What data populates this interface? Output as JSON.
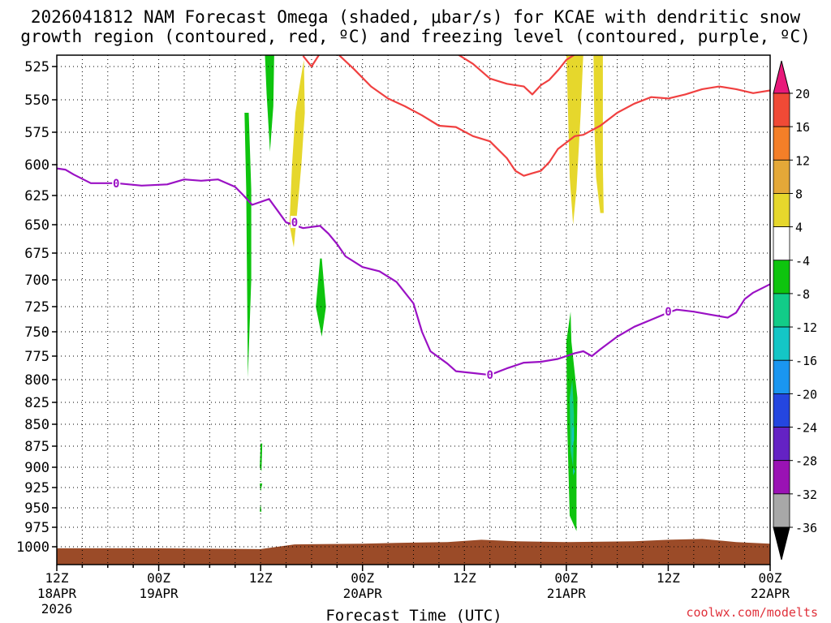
{
  "title_line1": "2026041812 NAM Forecast Omega (shaded, μbar/s) for KCAE with dendritic snow",
  "title_line2": "growth region (contoured, red, ºC) and freezing level (contoured, purple, ºC)",
  "credit": "coolwx.com/modelts",
  "chart_data": {
    "type": "time-height",
    "title": "2026041812 NAM Forecast Omega (shaded, μbar/s) for KCAE with dendritic snow growth region (contoured, red, ºC) and freezing level (contoured, purple, ºC)",
    "xlabel": "Forecast Time (UTC)",
    "ylabel": "",
    "x_range_hours": [
      0,
      84
    ],
    "x_ticks": [
      {
        "hour": 0,
        "line1": "12Z",
        "line2": "18APR",
        "line3": "2026"
      },
      {
        "hour": 12,
        "line1": "00Z",
        "line2": "19APR",
        "line3": ""
      },
      {
        "hour": 24,
        "line1": "12Z",
        "line2": "",
        "line3": ""
      },
      {
        "hour": 36,
        "line1": "00Z",
        "line2": "20APR",
        "line3": ""
      },
      {
        "hour": 48,
        "line1": "12Z",
        "line2": "",
        "line3": ""
      },
      {
        "hour": 60,
        "line1": "00Z",
        "line2": "21APR",
        "line3": ""
      },
      {
        "hour": 72,
        "line1": "12Z",
        "line2": "",
        "line3": ""
      },
      {
        "hour": 84,
        "line1": "00Z",
        "line2": "22APR",
        "line3": ""
      }
    ],
    "y_ticks": [
      "525",
      "550",
      "575",
      "600",
      "625",
      "650",
      "675",
      "700",
      "725",
      "750",
      "775",
      "800",
      "825",
      "850",
      "875",
      "900",
      "925",
      "950",
      "975",
      "1000"
    ],
    "grid": true,
    "colorbar": {
      "ticks": [
        "20",
        "16",
        "12",
        "8",
        "4",
        "-4",
        "-8",
        "-12",
        "-16",
        "-20",
        "-24",
        "-28",
        "-32",
        "-36"
      ],
      "colors": [
        "#e8197a",
        "#f04a36",
        "#f47f28",
        "#e4a838",
        "#e6d72c",
        "#ffffff",
        "#0ec40e",
        "#12cc88",
        "#14c6c6",
        "#1a96f0",
        "#2446e0",
        "#6422c4",
        "#9a12b4",
        "#a8a8a8",
        "#000000"
      ]
    },
    "freezing_level": {
      "color": "#9a11c4",
      "label": "0",
      "points": [
        [
          0,
          603
        ],
        [
          1,
          604
        ],
        [
          2,
          608
        ],
        [
          4,
          615
        ],
        [
          7,
          615
        ],
        [
          10,
          617
        ],
        [
          13,
          616
        ],
        [
          15,
          612
        ],
        [
          17,
          613
        ],
        [
          19,
          612
        ],
        [
          21,
          618
        ],
        [
          22,
          625
        ],
        [
          23,
          633
        ],
        [
          25,
          628
        ],
        [
          26,
          638
        ],
        [
          27,
          648
        ],
        [
          29,
          653
        ],
        [
          31,
          651
        ],
        [
          32,
          658
        ],
        [
          33,
          667
        ],
        [
          34,
          678
        ],
        [
          36,
          688
        ],
        [
          38,
          692
        ],
        [
          40,
          702
        ],
        [
          42,
          722
        ],
        [
          43,
          750
        ],
        [
          44,
          770
        ],
        [
          46,
          783
        ],
        [
          47,
          791
        ],
        [
          49,
          793
        ],
        [
          51,
          795
        ],
        [
          53,
          788
        ],
        [
          55,
          782
        ],
        [
          57,
          781
        ],
        [
          59,
          778
        ],
        [
          61,
          772
        ],
        [
          62,
          770
        ],
        [
          63,
          775
        ],
        [
          64,
          768
        ],
        [
          66,
          755
        ],
        [
          68,
          745
        ],
        [
          70,
          738
        ],
        [
          72,
          731
        ],
        [
          73,
          728
        ],
        [
          75,
          730
        ],
        [
          77,
          733
        ],
        [
          79,
          736
        ],
        [
          80,
          731
        ],
        [
          81,
          718
        ],
        [
          82,
          712
        ],
        [
          84,
          704
        ]
      ]
    },
    "dgz_contour": {
      "color": "#f04040",
      "segments": [
        [
          [
            29,
            517
          ],
          [
            30,
            525
          ],
          [
            31,
            515
          ]
        ],
        [
          [
            33,
            515
          ],
          [
            35,
            527
          ],
          [
            37,
            540
          ],
          [
            39,
            549
          ],
          [
            41,
            555
          ],
          [
            43,
            562
          ],
          [
            45,
            570
          ],
          [
            47,
            571
          ],
          [
            49,
            578
          ],
          [
            51,
            582
          ],
          [
            53,
            595
          ],
          [
            54,
            605
          ],
          [
            55,
            609
          ],
          [
            56,
            607
          ],
          [
            57,
            605
          ],
          [
            58,
            598
          ],
          [
            59,
            588
          ],
          [
            60,
            583
          ],
          [
            61,
            578
          ],
          [
            62,
            577
          ],
          [
            64,
            570
          ],
          [
            66,
            560
          ],
          [
            68,
            553
          ],
          [
            70,
            548
          ],
          [
            72,
            549
          ],
          [
            74,
            546
          ],
          [
            76,
            542
          ],
          [
            78,
            540
          ],
          [
            80,
            542
          ],
          [
            82,
            545
          ],
          [
            84,
            543
          ]
        ],
        [
          [
            47,
            515
          ],
          [
            49,
            523
          ],
          [
            51,
            534
          ],
          [
            53,
            538
          ],
          [
            55,
            540
          ],
          [
            56,
            546
          ],
          [
            57,
            539
          ],
          [
            58,
            535
          ],
          [
            59,
            528
          ],
          [
            60,
            520
          ],
          [
            61,
            516
          ]
        ]
      ]
    },
    "omega_regions": [
      {
        "value_range": "4 to 8",
        "color": "#e6d72c",
        "points": [
          [
            27.4,
            650
          ],
          [
            27.7,
            600
          ],
          [
            28.1,
            560
          ],
          [
            28.7,
            535
          ],
          [
            29.1,
            520
          ],
          [
            29.2,
            560
          ],
          [
            28.8,
            600
          ],
          [
            28.3,
            640
          ],
          [
            27.9,
            670
          ]
        ]
      },
      {
        "value_range": "4 to 8",
        "color": "#e6d72c",
        "points": [
          [
            60.0,
            515
          ],
          [
            60.2,
            560
          ],
          [
            60.4,
            610
          ],
          [
            60.8,
            650
          ],
          [
            61.2,
            620
          ],
          [
            61.7,
            560
          ],
          [
            62.0,
            515
          ]
        ]
      },
      {
        "value_range": "4 to 8",
        "color": "#e6d72c",
        "points": [
          [
            63.2,
            515
          ],
          [
            63.3,
            570
          ],
          [
            63.5,
            610
          ],
          [
            64.0,
            640
          ],
          [
            64.4,
            640
          ],
          [
            64.3,
            600
          ],
          [
            64.3,
            560
          ],
          [
            64.3,
            515
          ]
        ]
      },
      {
        "value_range": "-4 to -8",
        "color": "#0ec40e",
        "points": [
          [
            24.5,
            515
          ],
          [
            24.7,
            545
          ],
          [
            25.1,
            590
          ],
          [
            25.5,
            555
          ],
          [
            25.6,
            515
          ]
        ]
      },
      {
        "value_range": "-4 to -8",
        "color": "#0ec40e",
        "points": [
          [
            22.1,
            560
          ],
          [
            22.3,
            620
          ],
          [
            22.4,
            700
          ],
          [
            22.5,
            798
          ],
          [
            22.9,
            700
          ],
          [
            22.9,
            620
          ],
          [
            22.6,
            560
          ]
        ]
      },
      {
        "value_range": "-4 to -8",
        "color": "#0ec40e",
        "points": [
          [
            31.0,
            680
          ],
          [
            30.5,
            725
          ],
          [
            31.2,
            755
          ],
          [
            31.7,
            725
          ],
          [
            31.2,
            680
          ]
        ]
      },
      {
        "value_range": "-4 to -8",
        "color": "#0ec40e",
        "points": [
          [
            24.0,
            872
          ],
          [
            23.9,
            900
          ],
          [
            24.1,
            905
          ],
          [
            24.2,
            872
          ]
        ]
      },
      {
        "value_range": "-4 to -8",
        "color": "#0ec40e",
        "points": [
          [
            23.9,
            920
          ],
          [
            24.0,
            930
          ],
          [
            24.2,
            920
          ]
        ]
      },
      {
        "value_range": "-4 to -8",
        "color": "#0ec40e",
        "points": [
          [
            24.0,
            945
          ],
          [
            23.9,
            955
          ],
          [
            24.1,
            955
          ]
        ]
      },
      {
        "value_range": "-4 to -8",
        "color": "#0ec40e",
        "points": [
          [
            60.0,
            760
          ],
          [
            60.1,
            850
          ],
          [
            60.4,
            960
          ],
          [
            61.2,
            980
          ],
          [
            61.2,
            900
          ],
          [
            61.3,
            820
          ],
          [
            60.6,
            760
          ],
          [
            60.5,
            730
          ]
        ]
      },
      {
        "value_range": "-8 to -12",
        "color": "#12cc88",
        "points": [
          [
            60.4,
            820
          ],
          [
            60.5,
            880
          ],
          [
            60.8,
            900
          ],
          [
            60.9,
            840
          ],
          [
            60.7,
            800
          ]
        ]
      },
      {
        "value_range": "-12 to -16",
        "color": "#14c6c6",
        "points": [
          [
            60.7,
            855
          ],
          [
            60.7,
            875
          ],
          [
            60.9,
            868
          ],
          [
            60.9,
            852
          ]
        ]
      },
      {
        "value_range": "-12 to -16",
        "color": "#14c6c6",
        "points": [
          [
            60.8,
            900
          ],
          [
            60.8,
            910
          ],
          [
            61.0,
            905
          ]
        ]
      }
    ],
    "terrain": {
      "color": "#9b4b28",
      "surface_pressure": [
        [
          0,
          1002
        ],
        [
          12,
          1002
        ],
        [
          24,
          1003
        ],
        [
          26,
          1000
        ],
        [
          28,
          997
        ],
        [
          36,
          996
        ],
        [
          40,
          995
        ],
        [
          46,
          994
        ],
        [
          50,
          991
        ],
        [
          54,
          993
        ],
        [
          60,
          994
        ],
        [
          68,
          993
        ],
        [
          72,
          991
        ],
        [
          76,
          990
        ],
        [
          80,
          994
        ],
        [
          84,
          996
        ]
      ]
    }
  }
}
